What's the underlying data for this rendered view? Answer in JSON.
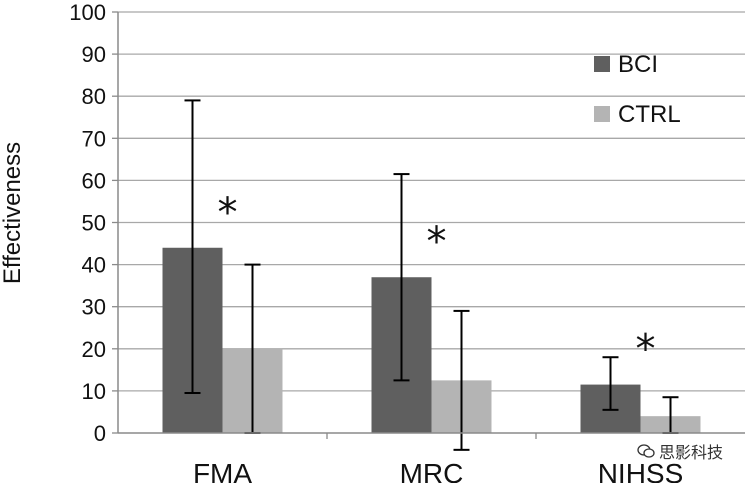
{
  "chart_data": {
    "type": "bar",
    "categories": [
      "FMA",
      "MRC",
      "NIHSS"
    ],
    "series": [
      {
        "name": "BCI",
        "values": [
          44,
          37,
          11.5
        ],
        "err_low": [
          9.5,
          12.5,
          5.5
        ],
        "err_high": [
          79,
          61.5,
          18
        ],
        "color": "#5f5f5f"
      },
      {
        "name": "CTRL",
        "values": [
          20,
          12.5,
          4
        ],
        "err_low": [
          0,
          -4,
          0
        ],
        "err_high": [
          40,
          29,
          8.5
        ],
        "color": "#b4b4b4"
      }
    ],
    "ylabel": "Effectiveness",
    "xlabel": "",
    "ylim": [
      0,
      100
    ],
    "yticks": [
      0,
      10,
      20,
      30,
      40,
      50,
      60,
      70,
      80,
      90,
      100
    ],
    "grid": true,
    "legend": "top-right",
    "annotations": [
      {
        "category": "FMA",
        "text": "*"
      },
      {
        "category": "MRC",
        "text": "*"
      },
      {
        "category": "NIHSS",
        "text": "*"
      }
    ]
  },
  "watermark": {
    "text": "思影科技",
    "icon": "wechat-icon"
  }
}
